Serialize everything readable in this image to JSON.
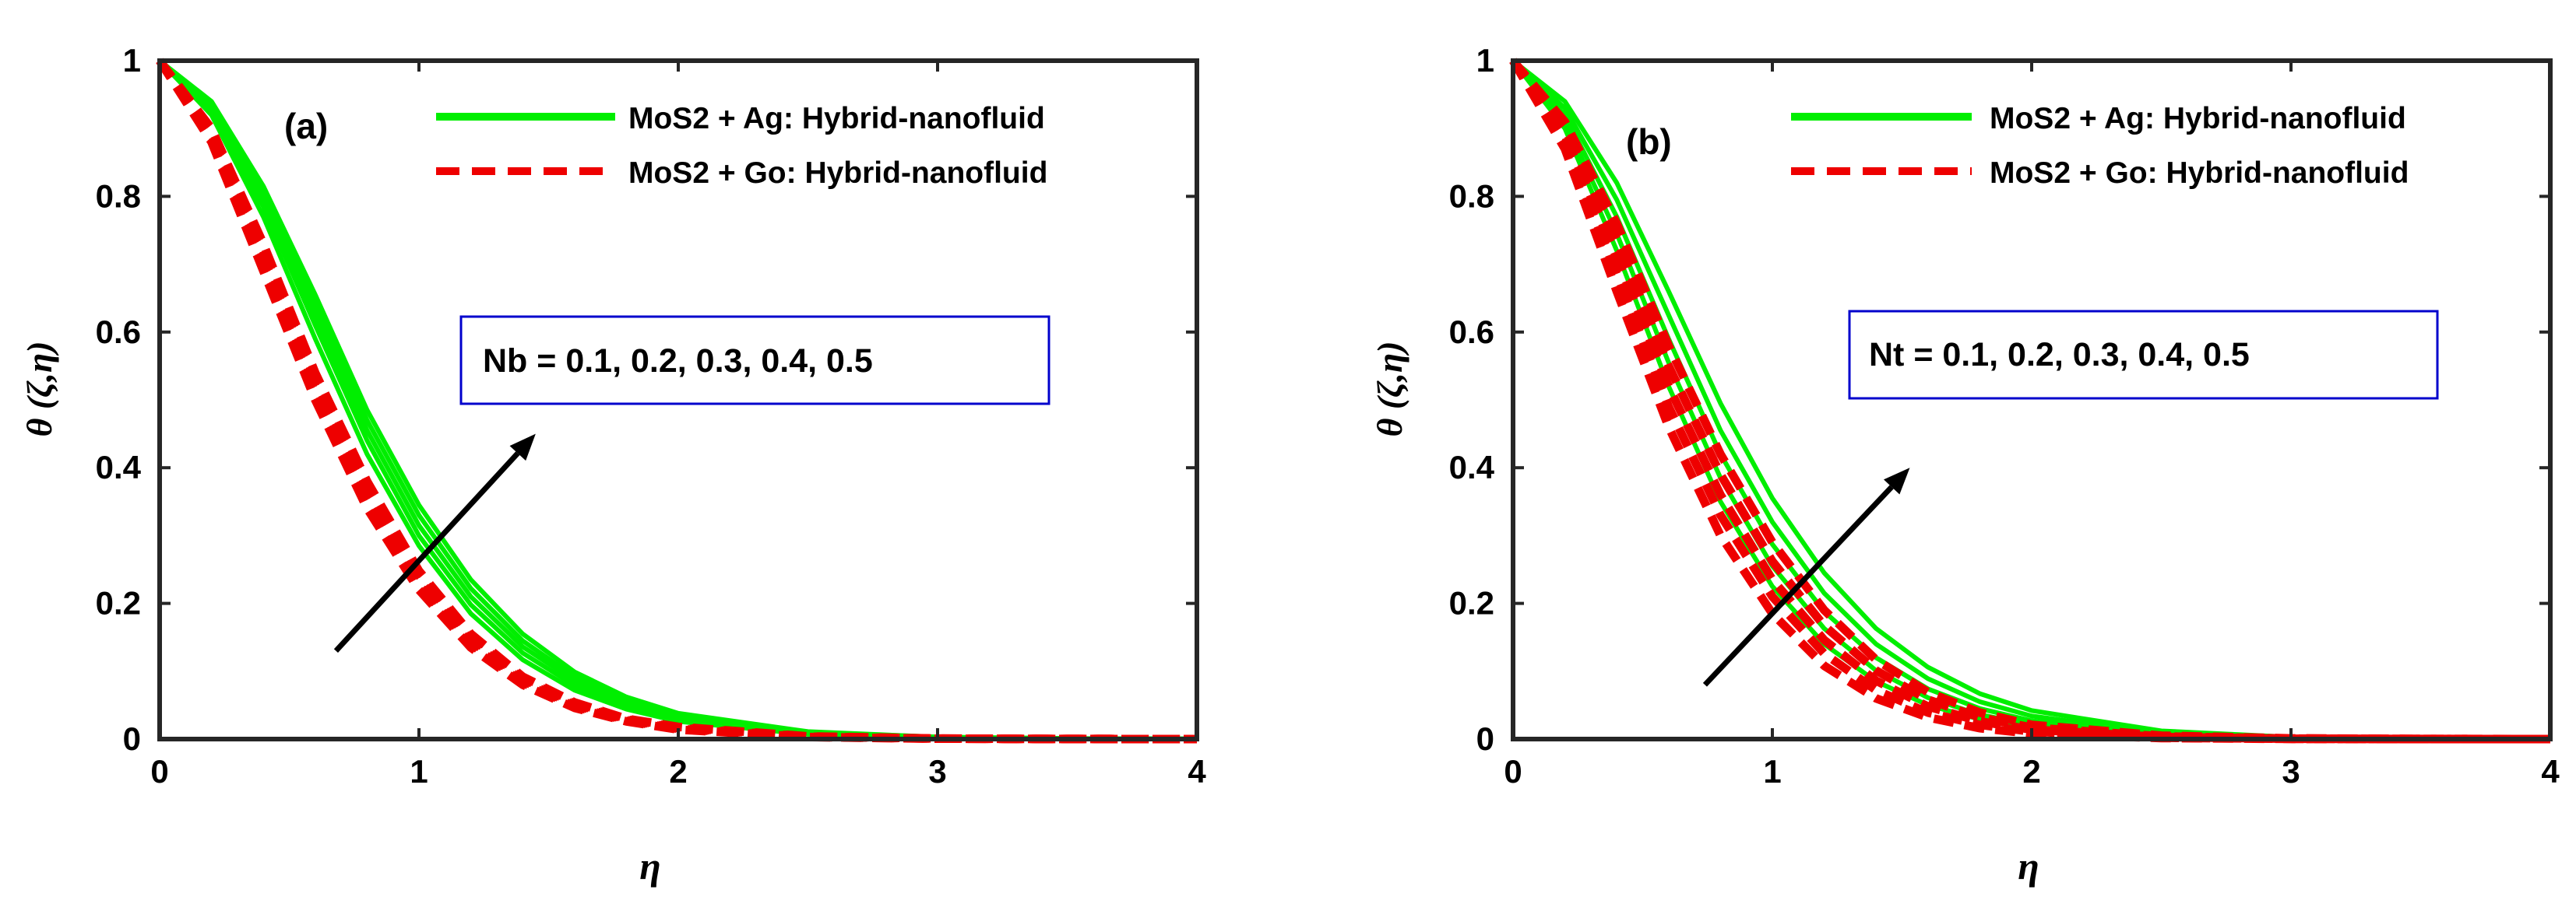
{
  "chart_data": [
    {
      "type": "line",
      "panel_label": "(a)",
      "xlabel": "η",
      "ylabel": "θ (ζ,η)",
      "xlim": [
        0,
        4
      ],
      "ylim": [
        0,
        1
      ],
      "xticks": [
        "0",
        "1",
        "2",
        "3",
        "4"
      ],
      "yticks": [
        "0",
        "0.2",
        "0.4",
        "0.6",
        "0.8",
        "1"
      ],
      "annotation": "Nb = 0.1, 0.2, 0.3, 0.4, 0.5",
      "arrow": {
        "from": [
          0.68,
          0.13
        ],
        "to": [
          1.45,
          0.45
        ]
      },
      "parameter_values": [
        0.1,
        0.2,
        0.3,
        0.4,
        0.5
      ],
      "x": [
        0,
        0.2,
        0.4,
        0.6,
        0.8,
        1.0,
        1.2,
        1.4,
        1.6,
        1.8,
        2.0,
        2.5,
        3.0,
        3.5,
        4.0
      ],
      "series": [
        {
          "name": "MoS2 + Ag: Hybrid-nanofluid",
          "style": "solid",
          "color": "#00ee00",
          "curves": [
            [
              1,
              0.92,
              0.77,
              0.59,
              0.42,
              0.285,
              0.185,
              0.117,
              0.072,
              0.044,
              0.026,
              0.007,
              0.002,
              0.0005,
              0.0001
            ],
            [
              1,
              0.925,
              0.785,
              0.61,
              0.44,
              0.3,
              0.198,
              0.127,
              0.079,
              0.048,
              0.029,
              0.008,
              0.002,
              0.0005,
              0.0001
            ],
            [
              1,
              0.93,
              0.795,
              0.625,
              0.455,
              0.315,
              0.21,
              0.136,
              0.086,
              0.053,
              0.032,
              0.009,
              0.0025,
              0.0006,
              0.0001
            ],
            [
              1,
              0.935,
              0.805,
              0.64,
              0.47,
              0.33,
              0.222,
              0.145,
              0.092,
              0.057,
              0.035,
              0.01,
              0.003,
              0.0007,
              0.0001
            ],
            [
              1,
              0.94,
              0.815,
              0.655,
              0.485,
              0.345,
              0.235,
              0.155,
              0.099,
              0.062,
              0.038,
              0.011,
              0.003,
              0.0008,
              0.0001
            ]
          ]
        },
        {
          "name": "MoS2 + Go: Hybrid-nanofluid",
          "style": "dashed",
          "color": "#ee0000",
          "curves": [
            [
              1,
              0.88,
              0.69,
              0.5,
              0.34,
              0.22,
              0.135,
              0.08,
              0.046,
              0.026,
              0.014,
              0.003,
              0.0006,
              0.0001,
              0
            ],
            [
              1,
              0.885,
              0.7,
              0.51,
              0.35,
              0.227,
              0.14,
              0.083,
              0.048,
              0.027,
              0.015,
              0.003,
              0.0006,
              0.0001,
              0
            ],
            [
              1,
              0.89,
              0.71,
              0.52,
              0.36,
              0.234,
              0.145,
              0.086,
              0.05,
              0.028,
              0.016,
              0.0035,
              0.0007,
              0.0001,
              0
            ],
            [
              1,
              0.895,
              0.72,
              0.53,
              0.37,
              0.241,
              0.15,
              0.089,
              0.052,
              0.029,
              0.017,
              0.0035,
              0.0007,
              0.0001,
              0
            ],
            [
              1,
              0.9,
              0.73,
              0.54,
              0.38,
              0.248,
              0.155,
              0.092,
              0.054,
              0.03,
              0.018,
              0.004,
              0.0008,
              0.0001,
              0
            ]
          ]
        }
      ]
    },
    {
      "type": "line",
      "panel_label": "(b)",
      "xlabel": "η",
      "ylabel": "θ (ζ,η)",
      "xlim": [
        0,
        4
      ],
      "ylim": [
        0,
        1
      ],
      "xticks": [
        "0",
        "1",
        "2",
        "3",
        "4"
      ],
      "yticks": [
        "0",
        "0.2",
        "0.4",
        "0.6",
        "0.8",
        "1"
      ],
      "annotation": "Nt = 0.1, 0.2, 0.3, 0.4, 0.5",
      "arrow": {
        "from": [
          0.74,
          0.08
        ],
        "to": [
          1.53,
          0.4
        ]
      },
      "parameter_values": [
        0.1,
        0.2,
        0.3,
        0.4,
        0.5
      ],
      "x": [
        0,
        0.2,
        0.4,
        0.6,
        0.8,
        1.0,
        1.2,
        1.4,
        1.6,
        1.8,
        2.0,
        2.5,
        3.0,
        3.5,
        4.0
      ],
      "series": [
        {
          "name": "MoS2 + Ag: Hybrid-nanofluid",
          "style": "solid",
          "color": "#00ee00",
          "curves": [
            [
              1,
              0.9,
              0.72,
              0.52,
              0.35,
              0.225,
              0.14,
              0.085,
              0.05,
              0.029,
              0.017,
              0.004,
              0.001,
              0.0002,
              0
            ],
            [
              1,
              0.91,
              0.745,
              0.555,
              0.385,
              0.255,
              0.163,
              0.101,
              0.061,
              0.036,
              0.021,
              0.005,
              0.0012,
              0.0003,
              0
            ],
            [
              1,
              0.92,
              0.77,
              0.59,
              0.42,
              0.287,
              0.188,
              0.12,
              0.074,
              0.045,
              0.027,
              0.007,
              0.0016,
              0.0004,
              0.0001
            ],
            [
              1,
              0.93,
              0.795,
              0.625,
              0.455,
              0.32,
              0.215,
              0.14,
              0.089,
              0.055,
              0.034,
              0.009,
              0.0022,
              0.0005,
              0.0001
            ],
            [
              1,
              0.94,
              0.82,
              0.66,
              0.495,
              0.355,
              0.245,
              0.163,
              0.106,
              0.067,
              0.042,
              0.012,
              0.003,
              0.0008,
              0.0002
            ]
          ]
        },
        {
          "name": "MoS2 + Go: Hybrid-nanofluid",
          "style": "dashed",
          "color": "#ee0000",
          "curves": [
            [
              1,
              0.87,
              0.66,
              0.46,
              0.3,
              0.185,
              0.108,
              0.06,
              0.032,
              0.016,
              0.008,
              0.0015,
              0.0002,
              0,
              0
            ],
            [
              1,
              0.88,
              0.685,
              0.49,
              0.33,
              0.21,
              0.126,
              0.072,
              0.039,
              0.021,
              0.011,
              0.002,
              0.0003,
              0,
              0
            ],
            [
              1,
              0.89,
              0.71,
              0.52,
              0.36,
              0.235,
              0.146,
              0.086,
              0.048,
              0.026,
              0.014,
              0.003,
              0.0005,
              0.0001,
              0
            ],
            [
              1,
              0.9,
              0.735,
              0.55,
              0.39,
              0.262,
              0.167,
              0.101,
              0.058,
              0.032,
              0.017,
              0.004,
              0.0007,
              0.0001,
              0
            ],
            [
              1,
              0.91,
              0.76,
              0.58,
              0.42,
              0.29,
              0.19,
              0.117,
              0.069,
              0.039,
              0.021,
              0.005,
              0.001,
              0.0002,
              0
            ]
          ]
        }
      ]
    }
  ]
}
